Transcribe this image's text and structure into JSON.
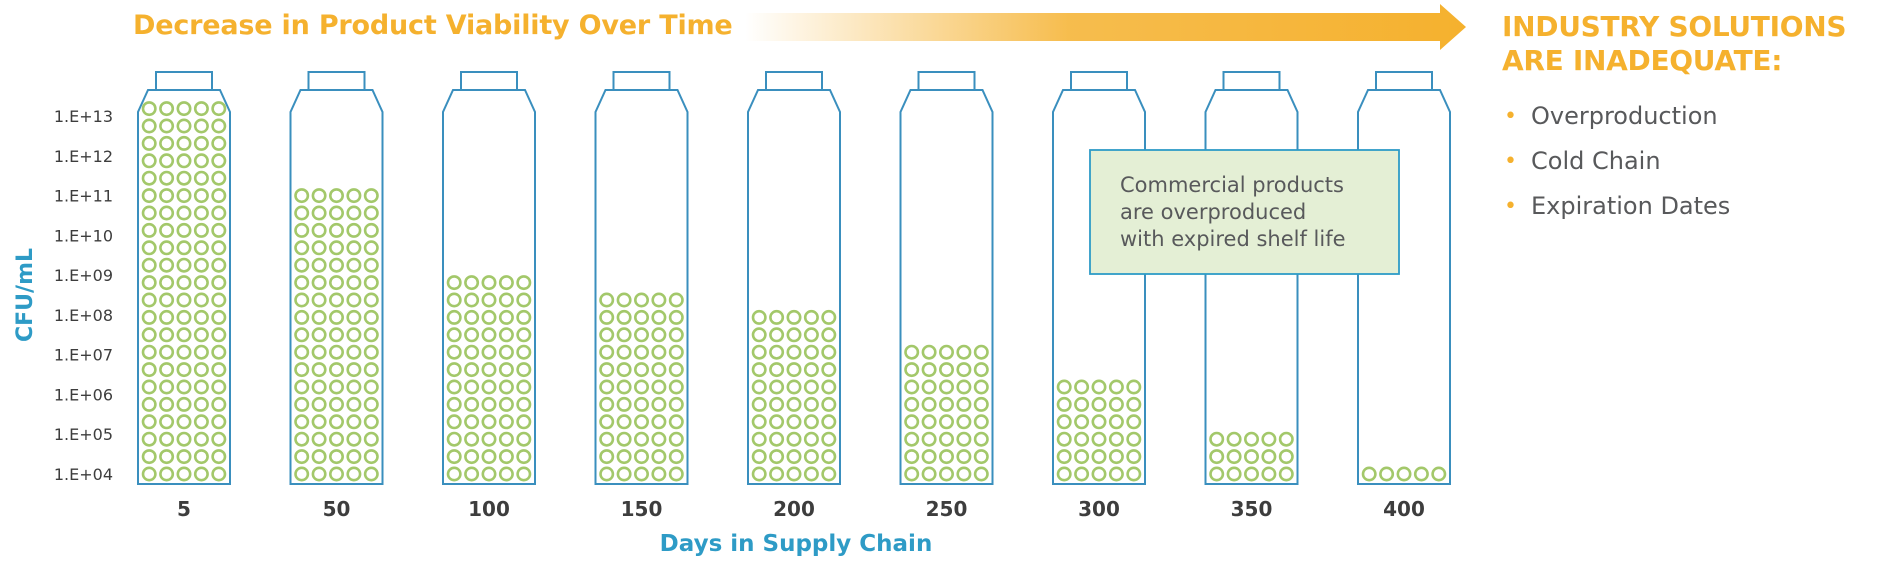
{
  "title": "Decrease in Product Viability Over Time",
  "panel": {
    "heading_line1": "INDUSTRY SOLUTIONS",
    "heading_line2": "ARE INADEQUATE:",
    "items": [
      "Overproduction",
      "Cold Chain",
      "Expiration Dates"
    ]
  },
  "callout": {
    "lines": [
      "Commercial products",
      "are overproduced",
      "with expired shelf life"
    ]
  },
  "colors": {
    "accent_orange": "#F5B12E",
    "axis_blue": "#2E9BC6",
    "bottle_outline": "#3A8FBE",
    "dot_green": "#A3C86A",
    "callout_fill": "#E4EFD5",
    "tick_text": "#3D3D3D",
    "body_text": "#58595B"
  },
  "chart_data": {
    "type": "bar",
    "title": "Decrease in Product Viability Over Time",
    "xlabel": "Days in Supply Chain",
    "ylabel": "CFU/mL",
    "y_scale": "log10",
    "categories": [
      "5",
      "50",
      "100",
      "150",
      "200",
      "250",
      "300",
      "350",
      "400"
    ],
    "values": [
      10000000000000.0,
      100000000000.0,
      1000000000.0,
      300000000.0,
      100000000.0,
      10000000.0,
      1000000.0,
      100000.0,
      10000.0
    ],
    "y_tick_labels": [
      "1.E+13",
      "1.E+12",
      "1.E+11",
      "1.E+10",
      "1.E+09",
      "1.E+08",
      "1.E+07",
      "1.E+06",
      "1.E+05",
      "1.E+04"
    ],
    "y_tick_values": [
      10000000000000.0,
      1000000000000.0,
      100000000000.0,
      10000000000.0,
      1000000000.0,
      100000000.0,
      10000000.0,
      1000000.0,
      100000.0,
      10000.0
    ],
    "ylim": [
      10000.0,
      10000000000000.0
    ],
    "grid": false,
    "legend": "none"
  }
}
